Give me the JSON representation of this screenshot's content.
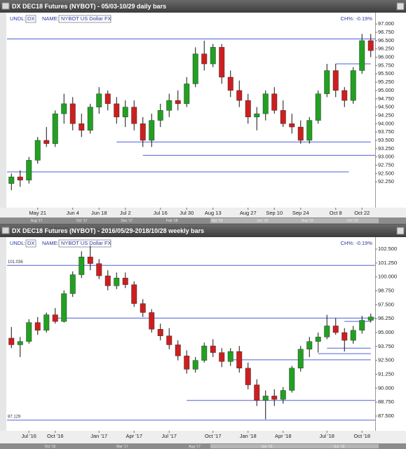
{
  "chart_data": [
    {
      "type": "candlestick",
      "title": "DX DEC18 Futures (NYBOT) - 05/03-10/29 daily bars",
      "undl_label": "UNDL:",
      "undl": "DX",
      "name_label": "NAME:",
      "name": "NYBOT US Dollar FX",
      "change": "CH%: -0.19%",
      "up_color": "#22a022",
      "down_color": "#cc1f1f",
      "ohlc": [
        [
          92.2,
          92.5,
          92.0,
          92.4
        ],
        [
          92.4,
          92.6,
          92.1,
          92.3
        ],
        [
          92.3,
          93.0,
          92.2,
          92.9
        ],
        [
          92.9,
          93.6,
          92.8,
          93.5
        ],
        [
          93.5,
          93.9,
          93.3,
          93.4
        ],
        [
          93.4,
          94.4,
          93.3,
          94.3
        ],
        [
          94.3,
          94.9,
          94.0,
          94.6
        ],
        [
          94.6,
          94.8,
          93.8,
          94.0
        ],
        [
          94.0,
          94.3,
          93.6,
          93.8
        ],
        [
          93.8,
          94.6,
          93.7,
          94.5
        ],
        [
          94.5,
          95.1,
          94.3,
          94.9
        ],
        [
          94.9,
          95.0,
          94.4,
          94.6
        ],
        [
          94.6,
          94.8,
          94.0,
          94.2
        ],
        [
          94.2,
          94.7,
          93.9,
          94.5
        ],
        [
          94.5,
          94.7,
          93.8,
          94.0
        ],
        [
          94.0,
          94.2,
          93.3,
          93.5
        ],
        [
          93.5,
          94.3,
          93.3,
          94.1
        ],
        [
          94.1,
          94.6,
          93.9,
          94.4
        ],
        [
          94.4,
          94.9,
          94.2,
          94.7
        ],
        [
          94.7,
          95.0,
          94.4,
          94.6
        ],
        [
          94.6,
          95.4,
          94.5,
          95.2
        ],
        [
          95.2,
          96.3,
          95.1,
          96.1
        ],
        [
          96.1,
          96.5,
          95.6,
          95.8
        ],
        [
          95.8,
          96.4,
          95.7,
          96.3
        ],
        [
          96.3,
          96.4,
          95.2,
          95.4
        ],
        [
          95.4,
          95.6,
          94.8,
          95.0
        ],
        [
          95.0,
          95.3,
          94.5,
          94.7
        ],
        [
          94.7,
          94.9,
          94.0,
          94.2
        ],
        [
          94.2,
          94.5,
          93.8,
          94.3
        ],
        [
          94.3,
          95.0,
          94.1,
          94.9
        ],
        [
          94.9,
          95.1,
          94.3,
          94.4
        ],
        [
          94.4,
          94.7,
          93.9,
          94.0
        ],
        [
          94.0,
          94.3,
          93.7,
          93.9
        ],
        [
          93.9,
          94.1,
          93.4,
          93.5
        ],
        [
          93.5,
          94.2,
          93.4,
          94.1
        ],
        [
          94.1,
          95.0,
          94.0,
          94.9
        ],
        [
          94.9,
          95.8,
          94.8,
          95.6
        ],
        [
          95.6,
          95.8,
          94.8,
          95.0
        ],
        [
          95.0,
          95.1,
          94.5,
          94.7
        ],
        [
          94.7,
          95.7,
          94.6,
          95.6
        ],
        [
          95.6,
          96.7,
          95.5,
          96.5
        ],
        [
          96.5,
          96.7,
          96.0,
          96.2
        ]
      ],
      "ylim": [
        91.6,
        97.3
      ],
      "yticks": [
        {
          "value": 97,
          "label": "97.000"
        },
        {
          "value": 96.75,
          "label": "96.750"
        },
        {
          "value": 96.5,
          "label": "96.500"
        },
        {
          "value": 96.25,
          "label": "96.250"
        },
        {
          "value": 96,
          "label": "96.000"
        },
        {
          "value": 95.75,
          "label": "95.750"
        },
        {
          "value": 95.5,
          "label": "95.500"
        },
        {
          "value": 95.25,
          "label": "95.250"
        },
        {
          "value": 95,
          "label": "95.000"
        },
        {
          "value": 94.75,
          "label": "94.750"
        },
        {
          "value": 94.5,
          "label": "94.500"
        },
        {
          "value": 94.25,
          "label": "94.250"
        },
        {
          "value": 94,
          "label": "94.000"
        },
        {
          "value": 93.75,
          "label": "93.750"
        },
        {
          "value": 93.5,
          "label": "93.500"
        },
        {
          "value": 93.25,
          "label": "93.250"
        },
        {
          "value": 93,
          "label": "93.000"
        },
        {
          "value": 92.75,
          "label": "92.750"
        },
        {
          "value": 92.5,
          "label": "92.500"
        },
        {
          "value": 92.25,
          "label": "92.250"
        }
      ],
      "xticks": [
        {
          "value": 3,
          "label": "May 21"
        },
        {
          "value": 7,
          "label": "Jun 4"
        },
        {
          "value": 10,
          "label": "Jun 18"
        },
        {
          "value": 13,
          "label": "Jul 2"
        },
        {
          "value": 17,
          "label": "Jul 16"
        },
        {
          "value": 20,
          "label": "Jul 30"
        },
        {
          "value": 23,
          "label": "Aug 13"
        },
        {
          "value": 27,
          "label": "Aug 27"
        },
        {
          "value": 30,
          "label": "Sep 10"
        },
        {
          "value": 33,
          "label": "Sep 24"
        },
        {
          "value": 37,
          "label": "Oct 8"
        },
        {
          "value": 40,
          "label": "Oct 22"
        }
      ],
      "lines": [
        {
          "value": 96.55,
          "x": [
            -0.5,
            41.5
          ]
        },
        {
          "value": 93.45,
          "x": [
            12,
            41
          ]
        },
        {
          "value": 93.05,
          "x": [
            15,
            41.5
          ]
        },
        {
          "value": 92.55,
          "x": [
            -0.5,
            38.5
          ]
        },
        {
          "value": 95.8,
          "x": [
            37,
            41
          ]
        }
      ],
      "levels": [],
      "nav_labels": [
        "Aug '17",
        "Oct '17",
        "Dec '17",
        "Feb '18",
        "Apr '18",
        "Jun '18",
        "Aug '18",
        "Oct '18"
      ]
    },
    {
      "type": "candlestick",
      "title": "DX DEC18 Futures (NYBOT) - 2016/05/29-2018/10/28 weekly bars",
      "undl_label": "UNDL:",
      "undl": "DX",
      "name_label": "NAME:",
      "name": "NYBOT US Dollar FX",
      "change": "CH%: -0.19%",
      "up_color": "#22a022",
      "down_color": "#cc1f1f",
      "ohlc": [
        [
          94.5,
          95.5,
          93.6,
          93.9
        ],
        [
          93.9,
          94.6,
          92.8,
          94.2
        ],
        [
          94.2,
          96.2,
          94.0,
          95.9
        ],
        [
          95.9,
          96.4,
          94.8,
          95.2
        ],
        [
          95.2,
          96.8,
          95.0,
          96.6
        ],
        [
          96.6,
          97.2,
          95.8,
          96.0
        ],
        [
          96.0,
          98.8,
          95.9,
          98.5
        ],
        [
          98.5,
          100.5,
          98.2,
          100.2
        ],
        [
          100.2,
          102.3,
          99.9,
          101.8
        ],
        [
          101.8,
          102.8,
          100.6,
          101.2
        ],
        [
          101.2,
          101.6,
          99.8,
          100.1
        ],
        [
          100.1,
          100.6,
          98.8,
          99.2
        ],
        [
          99.2,
          100.4,
          98.9,
          99.9
        ],
        [
          99.9,
          100.4,
          99.0,
          99.3
        ],
        [
          99.3,
          99.6,
          97.3,
          97.6
        ],
        [
          97.6,
          98.0,
          96.4,
          96.8
        ],
        [
          96.8,
          97.1,
          95.0,
          95.3
        ],
        [
          95.3,
          95.8,
          94.3,
          94.7
        ],
        [
          94.7,
          95.4,
          93.5,
          93.9
        ],
        [
          93.9,
          94.3,
          92.5,
          92.9
        ],
        [
          92.9,
          93.4,
          91.3,
          91.7
        ],
        [
          91.7,
          92.8,
          91.4,
          92.5
        ],
        [
          92.5,
          94.1,
          92.3,
          93.8
        ],
        [
          93.8,
          94.4,
          92.8,
          93.2
        ],
        [
          93.2,
          93.6,
          91.9,
          92.4
        ],
        [
          92.4,
          93.6,
          92.0,
          93.3
        ],
        [
          93.3,
          93.8,
          91.4,
          91.8
        ],
        [
          91.8,
          92.3,
          89.9,
          90.3
        ],
        [
          90.3,
          90.8,
          88.4,
          88.9
        ],
        [
          88.9,
          89.8,
          87.2,
          89.3
        ],
        [
          89.3,
          89.9,
          88.4,
          89.0
        ],
        [
          89.0,
          90.1,
          88.6,
          89.8
        ],
        [
          89.8,
          92.0,
          89.6,
          91.8
        ],
        [
          91.8,
          93.8,
          91.5,
          93.5
        ],
        [
          93.5,
          94.6,
          92.8,
          94.2
        ],
        [
          94.2,
          95.0,
          93.2,
          94.6
        ],
        [
          94.6,
          96.6,
          94.4,
          95.6
        ],
        [
          95.6,
          96.3,
          94.8,
          95.0
        ],
        [
          95.0,
          95.4,
          93.3,
          94.3
        ],
        [
          94.3,
          95.6,
          94.0,
          95.2
        ],
        [
          95.2,
          96.5,
          94.9,
          96.1
        ],
        [
          96.1,
          96.7,
          95.9,
          96.4
        ]
      ],
      "ylim": [
        86.3,
        103.45
      ],
      "yticks": [
        {
          "value": 102.5,
          "label": "102.500"
        },
        {
          "value": 101.25,
          "label": "101.250"
        },
        {
          "value": 100,
          "label": "100.000"
        },
        {
          "value": 98.75,
          "label": "98.750"
        },
        {
          "value": 97.5,
          "label": "97.500"
        },
        {
          "value": 96.25,
          "label": "96.250"
        },
        {
          "value": 95,
          "label": "95.000"
        },
        {
          "value": 93.75,
          "label": "93.750"
        },
        {
          "value": 92.5,
          "label": "92.500"
        },
        {
          "value": 91.25,
          "label": "91.250"
        },
        {
          "value": 90,
          "label": "90.000"
        },
        {
          "value": 88.75,
          "label": "88.750"
        },
        {
          "value": 87.5,
          "label": "87.500"
        }
      ],
      "xticks": [
        {
          "value": 2,
          "label": "Jul '16"
        },
        {
          "value": 5,
          "label": "Oct '16"
        },
        {
          "value": 10,
          "label": "Jan '17"
        },
        {
          "value": 14,
          "label": "Apr '17"
        },
        {
          "value": 18,
          "label": "Jul '17"
        },
        {
          "value": 23,
          "label": "Oct '17"
        },
        {
          "value": 27,
          "label": "Jan '18"
        },
        {
          "value": 31,
          "label": "Apr '18"
        },
        {
          "value": 36,
          "label": "Jul '18"
        },
        {
          "value": 40,
          "label": "Oct '18"
        }
      ],
      "lines": [
        {
          "value": 96.3,
          "x": [
            5,
            41.5
          ]
        },
        {
          "value": 92.55,
          "x": [
            25,
            41
          ]
        },
        {
          "value": 93.1,
          "x": [
            35,
            41
          ]
        },
        {
          "value": 88.9,
          "x": [
            20,
            41.5
          ]
        },
        {
          "value": 96.0,
          "x": [
            38,
            41
          ]
        },
        {
          "value": 93.6,
          "x": [
            36,
            41
          ]
        }
      ],
      "levels": [
        101.036,
        87.129
      ],
      "nav_labels": [
        "Oct '16",
        "Mar '17",
        "Aug '17",
        "Jan '18",
        "Jun '18"
      ]
    }
  ]
}
